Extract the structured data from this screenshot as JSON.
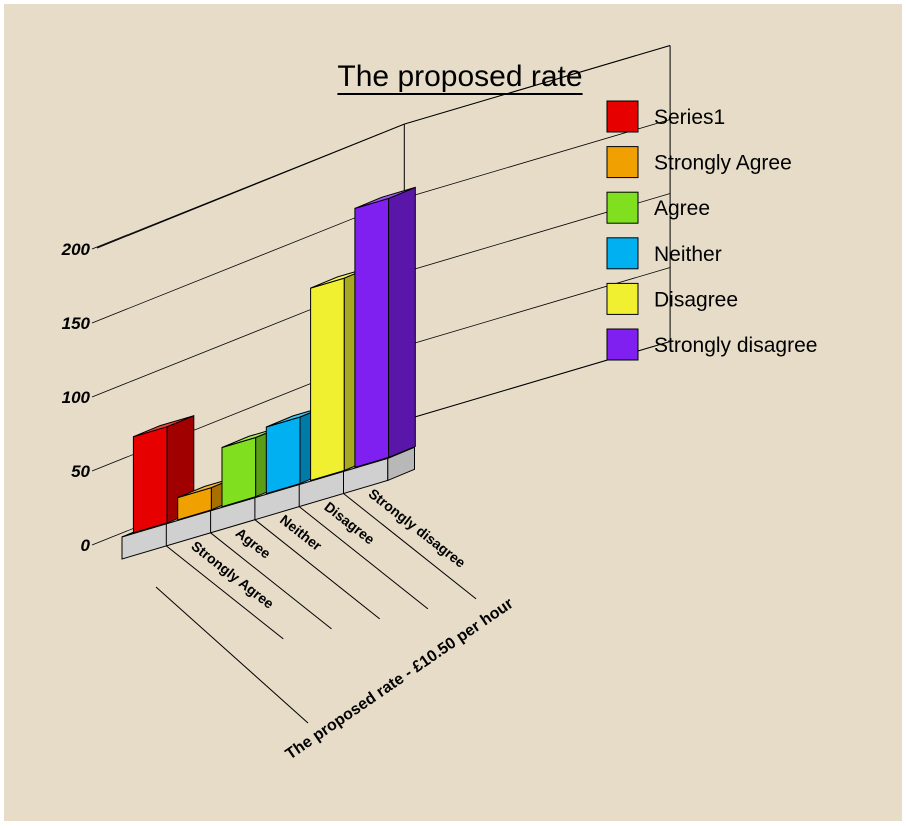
{
  "chart_data": {
    "type": "bar",
    "title": "The proposed rate",
    "xlabel": "The proposed rate - £10.50 per hour",
    "ylabel": "",
    "ylim": [
      0,
      200
    ],
    "yticks": [
      "0",
      "50",
      "100",
      "150",
      "200"
    ],
    "categories": [
      "Series1",
      "Strongly Agree",
      "Agree",
      "Neither",
      "Disagree",
      "Strongly disagree"
    ],
    "category_axis_labels": [
      "Strongly Agree",
      "Agree",
      "Neither",
      "Disagree",
      "Strongly disagree"
    ],
    "values": [
      65,
      15,
      40,
      45,
      130,
      175
    ],
    "legend": {
      "placement": "top-right",
      "entries": [
        "Series1",
        "Strongly Agree",
        "Agree",
        "Neither",
        "Disagree",
        "Strongly disagree"
      ]
    },
    "colors": [
      "#e60000",
      "#f0a000",
      "#80e020",
      "#00b0f0",
      "#f0f030",
      "#8020f0"
    ],
    "background": "#e6dcc8",
    "grid": true
  }
}
